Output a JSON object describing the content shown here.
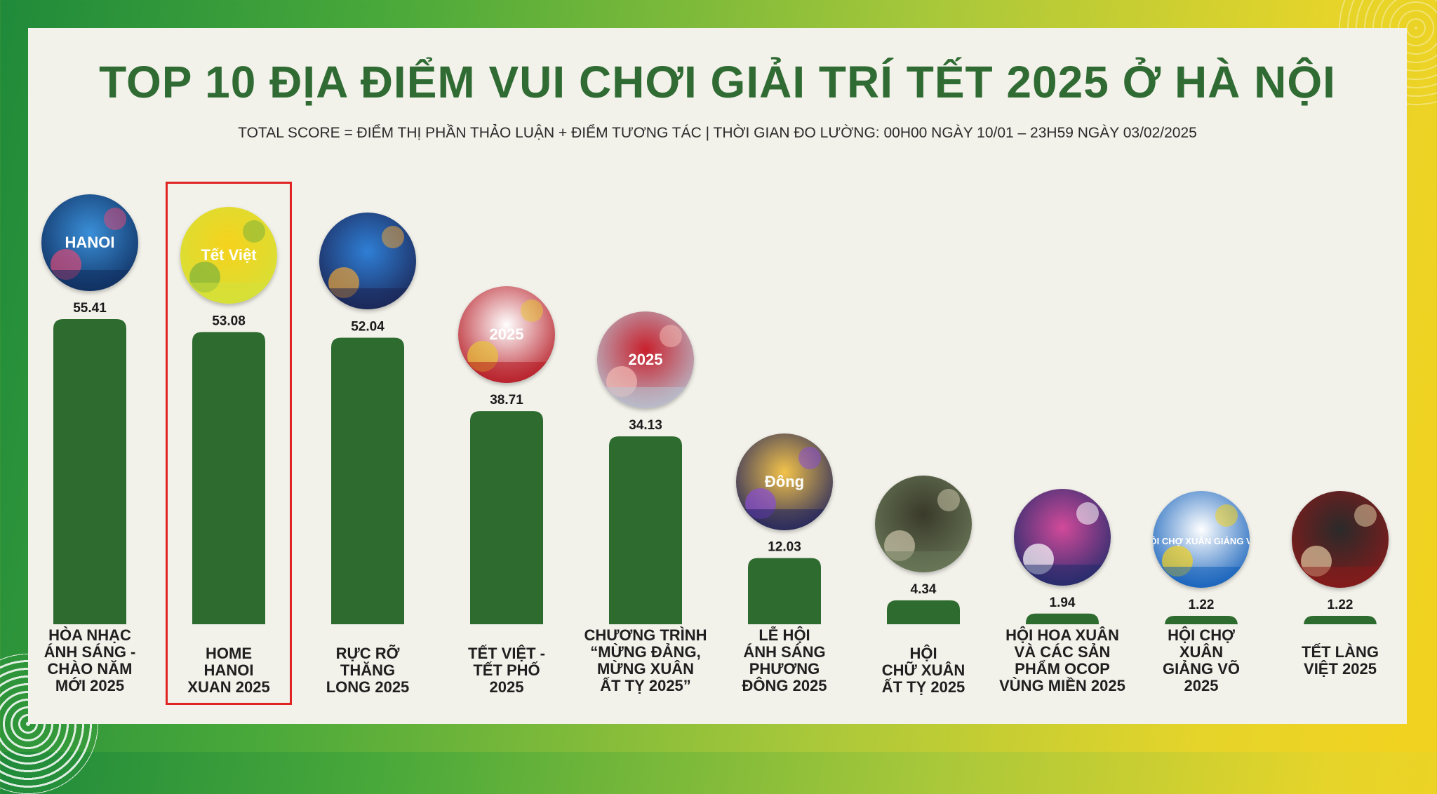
{
  "title": "TOP 10 ĐỊA ĐIỂM VUI CHƠI GIẢI TRÍ TẾT 2025 Ở HÀ NỘI",
  "subtitle": "TOTAL SCORE = ĐIỂM THỊ PHẦN THẢO LUẬN + ĐIỂM TƯƠNG TÁC | THỜI GIAN ĐO LƯỜNG: 00H00 NGÀY 10/01 – 23H59 NGÀY 03/02/2025",
  "colors": {
    "bar": "#2e6b2f",
    "title": "#2f6b32",
    "highlight": "#e02424",
    "panel": "#f2f1ea"
  },
  "chart_data": {
    "type": "bar",
    "title": "TOP 10 ĐỊA ĐIỂM VUI CHƠI GIẢI TRÍ TẾT 2025 Ở HÀ NỘI",
    "xlabel": "",
    "ylabel": "Total score",
    "ylim": [
      0,
      56
    ],
    "highlighted_category": "HOME HANOI XUAN 2025",
    "categories": [
      "HÒA NHẠC ÁNH SÁNG - CHÀO NĂM MỚI 2025",
      "HOME HANOI XUAN 2025",
      "RỰC RỠ THĂNG LONG 2025",
      "TẾT VIỆT - TẾT PHỐ 2025",
      "CHƯƠNG TRÌNH “MỪNG ĐẢNG, MỪNG XUÂN ẤT TỴ 2025”",
      "LỄ HỘI ÁNH SÁNG PHƯƠNG ĐÔNG 2025",
      "HỘI CHỮ XUÂN ẤT TỴ 2025",
      "HỘI HOA XUÂN VÀ CÁC SẢN PHẨM OCOP VÙNG MIỀN 2025",
      "HỘI CHỢ XUÂN GIẢNG VÕ 2025",
      "TẾT LÀNG VIỆT 2025"
    ],
    "values": [
      55.41,
      53.08,
      52.04,
      38.71,
      34.13,
      12.03,
      4.34,
      1.94,
      1.22,
      1.22
    ],
    "value_labels": [
      "55.41",
      "53.08",
      "52.04",
      "38.71",
      "34.13",
      "12.03",
      "4.34",
      "1.94",
      "1.22",
      "1.22"
    ]
  },
  "thumbnails": [
    {
      "icon": "concert-poster-thumbnail",
      "text": "HANOI"
    },
    {
      "icon": "tet-viet-poster-thumbnail",
      "text": "Tết Việt"
    },
    {
      "icon": "fireworks-phoenix-thumbnail",
      "text": ""
    },
    {
      "icon": "tet-pho-poster-thumbnail",
      "text": "2025"
    },
    {
      "icon": "mung-dang-stage-thumbnail",
      "text": "2025"
    },
    {
      "icon": "phuong-dong-lantern-thumbnail",
      "text": "Đông"
    },
    {
      "icon": "temple-gate-thumbnail",
      "text": ""
    },
    {
      "icon": "ocop-ceremony-thumbnail",
      "text": ""
    },
    {
      "icon": "hoi-cho-giang-vo-logo-thumbnail",
      "text": "HỘI CHỢ XUÂN GIẢNG VÕ"
    },
    {
      "icon": "calligrapher-thumbnail",
      "text": ""
    }
  ]
}
